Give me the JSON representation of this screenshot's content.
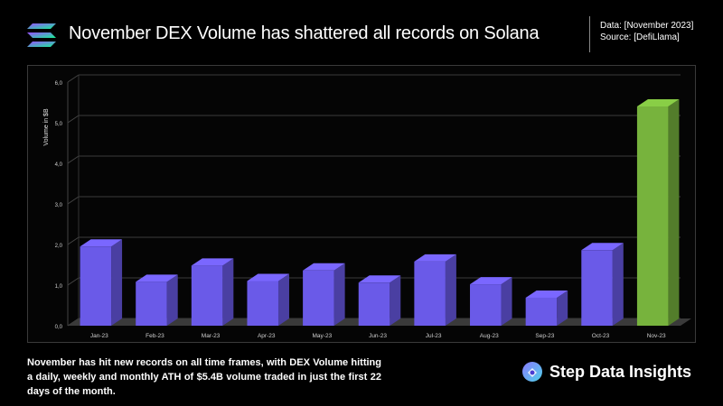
{
  "header": {
    "title": "November DEX Volume has shattered all records on Solana",
    "data_label": "Data: [November 2023]",
    "source_label": "Source: [DefiLlama]"
  },
  "chart_data": {
    "type": "bar",
    "title": "",
    "xlabel": "",
    "ylabel": "Volume in $B",
    "ylim": [
      0,
      6
    ],
    "yticks": [
      "0,0",
      "1,0",
      "2,0",
      "3,0",
      "4,0",
      "5,0",
      "6,0"
    ],
    "grid": true,
    "categories": [
      "Jan-23",
      "Feb-23",
      "Mar-23",
      "Apr-23",
      "May-23",
      "Jun-23",
      "Jul-23",
      "Aug-23",
      "Sep-23",
      "Oct-23",
      "Nov-23"
    ],
    "values": [
      1.95,
      1.08,
      1.48,
      1.1,
      1.36,
      1.06,
      1.58,
      1.02,
      0.69,
      1.86,
      5.4
    ],
    "colors": {
      "default": "#6a5ae8",
      "highlight": "#77b33d",
      "highlight_index": 10
    }
  },
  "footer": {
    "description": "November has hit new records on all time frames, with DEX Volume hitting a daily, weekly and monthly ATH of $5.4B volume traded in just the first 22 days of the month.",
    "brand_name": "Step Data Insights"
  }
}
